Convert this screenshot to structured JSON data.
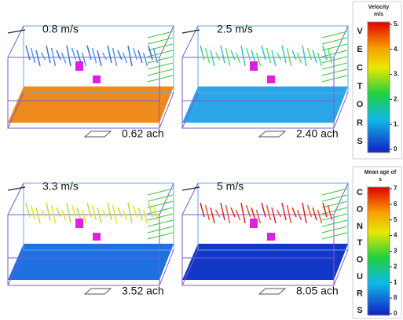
{
  "panels": [
    {
      "speed": "0.8 m/s",
      "ach": "0.62 ach"
    },
    {
      "speed": "2.5 m/s",
      "ach": "2.40 ach"
    },
    {
      "speed": "3.3 m/s",
      "ach": "3.52 ach"
    },
    {
      "speed": "5 m/s",
      "ach": "8.05 ach"
    }
  ],
  "vectors_legend": {
    "title": "Velocity",
    "unit": "m/s",
    "letters": [
      "V",
      "E",
      "C",
      "T",
      "O",
      "R",
      "S"
    ],
    "ticks": [
      "5.",
      "4.",
      "3.",
      "2.",
      "1.",
      "0"
    ]
  },
  "contours_legend": {
    "title": "Mean age of",
    "unit": "s",
    "letters": [
      "C",
      "O",
      "N",
      "T",
      "O",
      "U",
      "R",
      "S"
    ],
    "ticks": [
      "7",
      "6",
      "5",
      "4",
      "3",
      "2",
      "1",
      "8",
      "0"
    ]
  }
}
